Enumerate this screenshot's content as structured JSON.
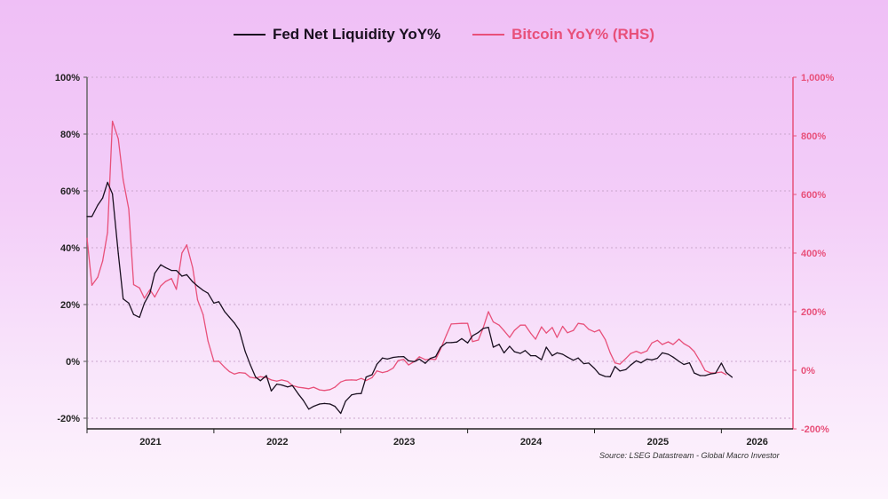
{
  "chart_data": {
    "type": "line",
    "title": "",
    "legend": {
      "placement": "top-center"
    },
    "source": "Source: LSEG Datastream - Global Macro Investor",
    "grid": true,
    "x_axis": {
      "type": "date",
      "tick_labels": [
        "2021",
        "2022",
        "2023",
        "2024",
        "2025",
        "2026"
      ],
      "xlim": [
        "2021-01-01",
        "2026-07-26"
      ]
    },
    "y_axis_left": {
      "tick_labels": [
        "100%",
        "80%",
        "60%",
        "40%",
        "20%",
        "0%",
        "-20%"
      ],
      "ticks": [
        100,
        80,
        60,
        40,
        20,
        0,
        -20
      ],
      "ylim": [
        -23.75,
        100
      ]
    },
    "y_axis_right": {
      "tick_labels": [
        "1,000%",
        "800%",
        "600%",
        "400%",
        "200%",
        "0%",
        "-200%"
      ],
      "ticks": [
        1000,
        800,
        600,
        400,
        200,
        0,
        -200
      ],
      "ylim": [
        -200,
        1000
      ]
    },
    "colors": {
      "fed": "#1a1020",
      "btc": "#e8507a"
    },
    "x": [
      "2021-01-01",
      "2021-01-15",
      "2021-02-01",
      "2021-02-15",
      "2021-03-01",
      "2021-03-15",
      "2021-04-01",
      "2021-04-15",
      "2021-05-01",
      "2021-05-15",
      "2021-06-01",
      "2021-06-15",
      "2021-07-01",
      "2021-07-15",
      "2021-08-01",
      "2021-08-15",
      "2021-09-01",
      "2021-09-15",
      "2021-10-01",
      "2021-10-15",
      "2021-11-01",
      "2021-11-15",
      "2021-12-01",
      "2021-12-15",
      "2022-01-01",
      "2022-01-15",
      "2022-02-01",
      "2022-02-15",
      "2022-03-01",
      "2022-03-15",
      "2022-04-01",
      "2022-04-15",
      "2022-05-01",
      "2022-05-15",
      "2022-06-01",
      "2022-06-15",
      "2022-07-01",
      "2022-07-15",
      "2022-08-01",
      "2022-08-15",
      "2022-09-01",
      "2022-09-15",
      "2022-10-01",
      "2022-10-15",
      "2022-11-01",
      "2022-11-15",
      "2022-12-01",
      "2022-12-15",
      "2023-01-01",
      "2023-01-15",
      "2023-02-01",
      "2023-02-15",
      "2023-03-01",
      "2023-03-15",
      "2023-04-01",
      "2023-04-15",
      "2023-05-01",
      "2023-05-15",
      "2023-06-01",
      "2023-06-15",
      "2023-07-01",
      "2023-07-15",
      "2023-08-01",
      "2023-08-15",
      "2023-09-01",
      "2023-09-15",
      "2023-10-01",
      "2023-10-15",
      "2023-11-01",
      "2023-11-15",
      "2023-12-01",
      "2023-12-15",
      "2024-01-01",
      "2024-01-15",
      "2024-02-01",
      "2024-02-15",
      "2024-03-01",
      "2024-03-15",
      "2024-04-01",
      "2024-04-15",
      "2024-05-01",
      "2024-05-15",
      "2024-06-01",
      "2024-06-15",
      "2024-07-01",
      "2024-07-15",
      "2024-08-01",
      "2024-08-15",
      "2024-09-01",
      "2024-09-15",
      "2024-10-01",
      "2024-10-15",
      "2024-11-01",
      "2024-11-15",
      "2024-12-01",
      "2024-12-15",
      "2025-01-01",
      "2025-01-15",
      "2025-02-01",
      "2025-02-15",
      "2025-03-01",
      "2025-03-15",
      "2025-04-01",
      "2025-04-15",
      "2025-05-01",
      "2025-05-15",
      "2025-06-01",
      "2025-06-15",
      "2025-07-01",
      "2025-07-15",
      "2025-08-01",
      "2025-08-15",
      "2025-09-01",
      "2025-09-15",
      "2025-10-01",
      "2025-10-15",
      "2025-11-01",
      "2025-11-15",
      "2025-12-01",
      "2025-12-15",
      "2026-01-01",
      "2026-01-15",
      "2026-02-01"
    ],
    "series": [
      {
        "name": "Fed Net Liquidity YoY%",
        "axis": "left",
        "values": [
          51,
          51,
          55,
          57.5,
          63,
          59,
          38,
          22,
          20.5,
          16.5,
          15.5,
          20.5,
          24,
          31,
          34,
          33,
          32,
          32,
          30,
          30.5,
          28,
          26.5,
          25,
          24,
          20.5,
          21,
          17.5,
          15.5,
          13.5,
          11,
          3.5,
          -1,
          -5.5,
          -6.8,
          -5,
          -10.4,
          -8,
          -8.3,
          -9,
          -8.5,
          -11.5,
          -13.7,
          -16.8,
          -15.8,
          -15,
          -14.8,
          -15,
          -15.8,
          -18.3,
          -14,
          -11.8,
          -11.4,
          -11.3,
          -5.5,
          -4.7,
          -1,
          1.2,
          0.8,
          1.4,
          1.6,
          1.7,
          0.2,
          -0.1,
          0.8,
          -0.7,
          1,
          1.7,
          4.9,
          6.6,
          6.6,
          6.8,
          8,
          6.5,
          9,
          10.2,
          11.6,
          12,
          5,
          6,
          3,
          5.3,
          3.4,
          2.8,
          3.8,
          2,
          2,
          0.6,
          5,
          2,
          3,
          2.5,
          1.5,
          0.4,
          1.2,
          -0.8,
          -0.6,
          -2.5,
          -4.5,
          -5.3,
          -5.4,
          -1.8,
          -3.4,
          -2.9,
          -1.3,
          0.2,
          -0.5,
          0.8,
          0.5,
          1.1,
          3,
          2.5,
          1.5,
          0,
          -1.1,
          -0.5,
          -4.1,
          -5,
          -5,
          -4.4,
          -4.2,
          -0.6,
          -3.9,
          -5.6
        ]
      },
      {
        "name": "Bitcoin YoY% (RHS)",
        "axis": "right",
        "values": [
          451,
          290,
          318,
          373,
          470,
          850,
          790,
          650,
          550,
          292,
          281,
          246,
          275,
          250,
          288,
          303,
          313,
          276,
          400,
          428,
          350,
          240,
          190,
          100,
          30,
          31,
          10,
          -5,
          -13,
          -8,
          -10,
          -24,
          -27,
          -22,
          -25,
          -33,
          -37,
          -33,
          -38,
          -52,
          -58,
          -60,
          -63,
          -58,
          -67,
          -69,
          -66,
          -58,
          -40,
          -34,
          -33,
          -34,
          -28,
          -35,
          -25,
          -2,
          -8,
          -4,
          8,
          33,
          37,
          18,
          30,
          46,
          36,
          38,
          37,
          72,
          120,
          158,
          159,
          160,
          160,
          98,
          103,
          145,
          200,
          165,
          154,
          135,
          112,
          136,
          154,
          154,
          126,
          106,
          148,
          127,
          146,
          112,
          150,
          128,
          136,
          160,
          157,
          140,
          131,
          138,
          105,
          60,
          25,
          21,
          40,
          57,
          65,
          58,
          66,
          93,
          102,
          88,
          97,
          88,
          106,
          91,
          80,
          64,
          30,
          -1,
          -9,
          -9,
          -6,
          -15,
          null
        ]
      }
    ]
  }
}
